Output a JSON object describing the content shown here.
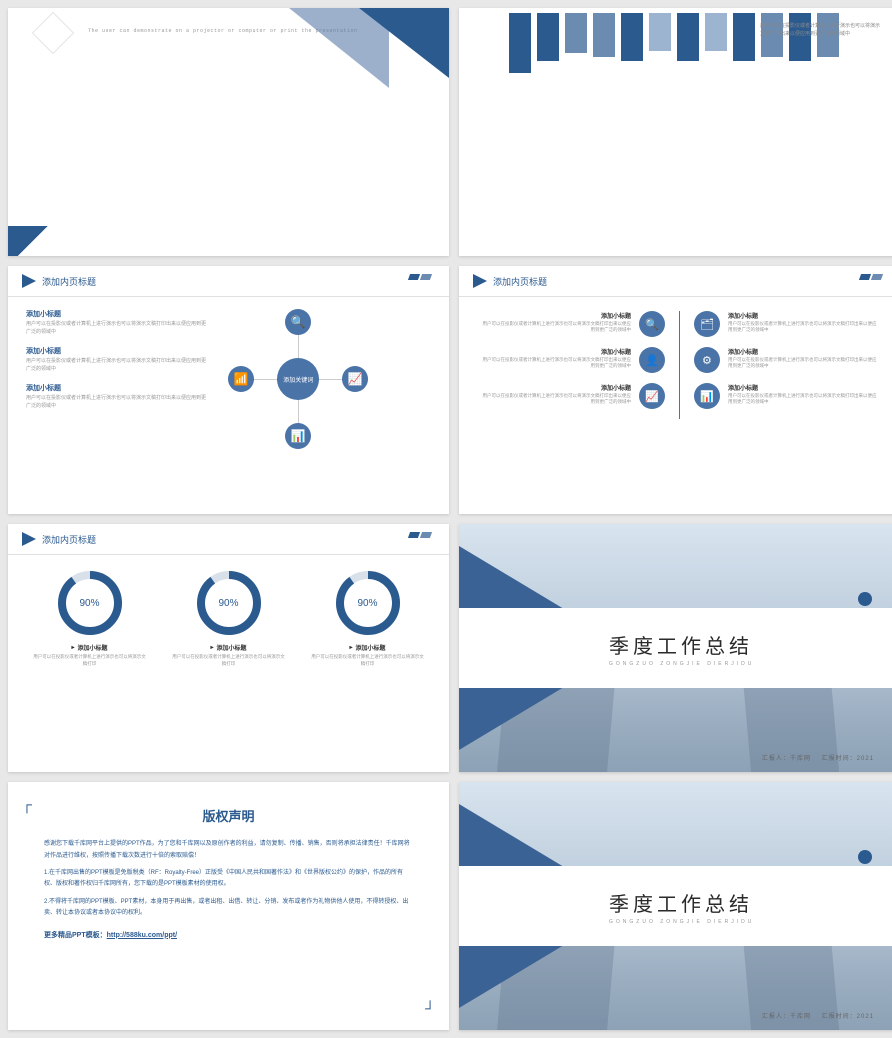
{
  "colors": {
    "primary": "#2b5a8f",
    "secondary": "#4a73a8",
    "light": "#6b8bb0",
    "text": "#999",
    "dark": "#333"
  },
  "slide1": {
    "caption": "The user can demonstrate on a projector or computer or print the presentation"
  },
  "slide2": {
    "bars": {
      "heights": [
        60,
        48,
        40,
        44,
        48,
        38,
        48,
        38,
        48,
        44,
        48,
        44
      ],
      "colors": [
        "#2b5a8f",
        "#2b5a8f",
        "#6b8bb0",
        "#6b8bb0",
        "#2b5a8f",
        "#9cb4d0",
        "#2b5a8f",
        "#9cb4d0",
        "#2b5a8f",
        "#6b8bb0",
        "#2b5a8f",
        "#6b8bb0"
      ]
    },
    "note": "用户可以在投影仪或者计算机上进行演示也可以将演示文稿打印出来以便应用到更广泛的领域中"
  },
  "slide3": {
    "header": "添加内页标题",
    "hub_label": "添加关键词",
    "items": [
      {
        "title": "添加小标题",
        "desc": "用户可以在投影仪或者计算机上进行演示也可以将演示文稿打印出来以便应用到更广泛的领域中"
      },
      {
        "title": "添加小标题",
        "desc": "用户可以在投影仪或者计算机上进行演示也可以将演示文稿打印出来以便应用到更广泛的领域中"
      },
      {
        "title": "添加小标题",
        "desc": "用户可以在投影仪或者计算机上进行演示也可以将演示文稿打印出来以便应用到更广泛的领域中"
      }
    ],
    "node_icons": [
      "🔍",
      "📶",
      "📈",
      "📊"
    ]
  },
  "slide4": {
    "header": "添加内页标题",
    "left": [
      {
        "icon": "🔍",
        "title": "添加小标题",
        "desc": "用户可以在投影仪或者计算机上进行演示也可以将演示文稿打印出来以便应用到更广泛的领域中"
      },
      {
        "icon": "👤",
        "title": "添加小标题",
        "desc": "用户可以在投影仪或者计算机上进行演示也可以将演示文稿打印出来以便应用到更广泛的领域中"
      },
      {
        "icon": "📈",
        "title": "添加小标题",
        "desc": "用户可以在投影仪或者计算机上进行演示也可以将演示文稿打印出来以便应用到更广泛的领域中"
      }
    ],
    "right": [
      {
        "icon": "🗂",
        "title": "添加小标题",
        "desc": "用户可以在投影仪或者计算机上进行演示也可以将演示文稿打印出来以便应用到更广泛的领域中"
      },
      {
        "icon": "⚙",
        "title": "添加小标题",
        "desc": "用户可以在投影仪或者计算机上进行演示也可以将演示文稿打印出来以便应用到更广泛的领域中"
      },
      {
        "icon": "📊",
        "title": "添加小标题",
        "desc": "用户可以在投影仪或者计算机上进行演示也可以将演示文稿打印出来以便应用到更广泛的领域中"
      }
    ]
  },
  "slide5": {
    "header": "添加内页标题",
    "donuts": [
      {
        "pct": 90,
        "label": "90%",
        "title": "添加小标题",
        "desc": "用户可以在投影仪或者计算机上进行演示也可以将演示文稿打印"
      },
      {
        "pct": 90,
        "label": "90%",
        "title": "添加小标题",
        "desc": "用户可以在投影仪或者计算机上进行演示也可以将演示文稿打印"
      },
      {
        "pct": 90,
        "label": "90%",
        "title": "添加小标题",
        "desc": "用户可以在投影仪或者计算机上进行演示也可以将演示文稿打印"
      }
    ],
    "donut_style": {
      "radius": 28,
      "stroke": 8,
      "track": "#d8e0ea",
      "fill": "#2b5a8f"
    }
  },
  "cover": {
    "title": "季度工作总结",
    "subtitle": "GONGZUO  ZONGJIE  DIERJIDU",
    "footer_label_a": "汇报人：",
    "footer_val_a": "千库网",
    "footer_label_b": "汇报时间：",
    "footer_val_b": "2021"
  },
  "slide7": {
    "title": "版权声明",
    "p1": "感谢您下载千库网平台上提供的PPT作品，为了您和千库网以及原创作者的利益，请勿复制、传播、销售，否则将承担法律责任！千库网将对作品进行维权，按照传播下载次数进行十倍的索取赔偿！",
    "p2": "1.在千库网出售的PPT模板是免版税类（RF：Royalty-Free）正版受《中国人民共和国著作法》和《世界版权公约》的保护，作品的所有权、版权和著作权归千库网所有，您下载的是PPT模板素材的使用权。",
    "p3": "2.不得将千库网的PPT模板、PPT素材，本身用于再出售，或者出租、出借、转让、分销、发布或者作为礼物供他人使用，不得转授权、出卖、转让本协议或者本协议中的权利。",
    "more_label": "更多精品PPT模板：",
    "more_link": "http://588ku.com/ppt/"
  }
}
